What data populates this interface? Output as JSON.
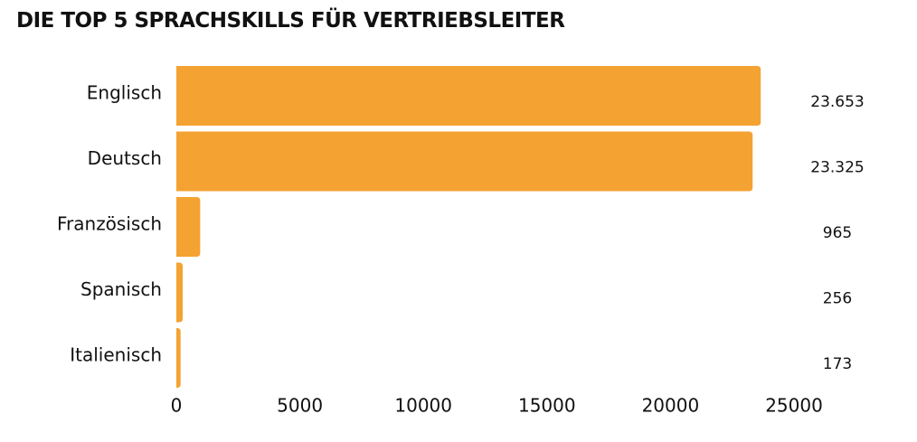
{
  "chart_data": {
    "type": "bar",
    "orientation": "horizontal",
    "title": "DIE TOP 5 SPRACHSKILLS FÜR VERTRIEBSLEITER",
    "categories": [
      "Englisch",
      "Deutsch",
      "Französisch",
      "Spanisch",
      "Italienisch"
    ],
    "values": [
      23653,
      23325,
      965,
      256,
      173
    ],
    "value_labels": [
      "23.653",
      "23.325",
      "965",
      "256",
      "173"
    ],
    "xticks": [
      "0",
      "5000",
      "10000",
      "15000",
      "20000",
      "25000"
    ],
    "xlim": [
      0,
      25000
    ],
    "xlabel": "",
    "ylabel": "",
    "grid": false,
    "bar_color": "#F4A231"
  }
}
